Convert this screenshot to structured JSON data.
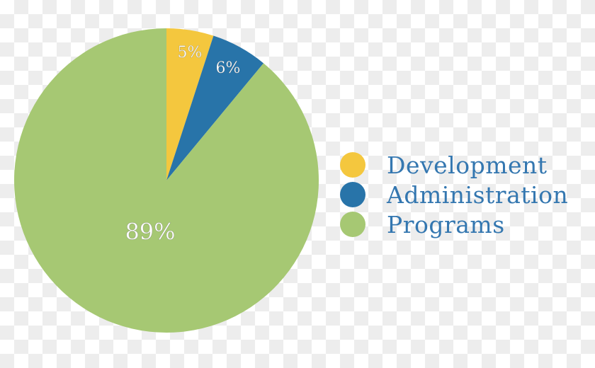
{
  "chart_data": {
    "type": "pie",
    "title": "",
    "start": "top",
    "direction": "clockwise",
    "slices": [
      {
        "label": "Development",
        "value": 5,
        "data_label": "5%",
        "color": "#f4c73e"
      },
      {
        "label": "Administration",
        "value": 6,
        "data_label": "6%",
        "color": "#2874a9"
      },
      {
        "label": "Programs",
        "value": 89,
        "data_label": "89%",
        "color": "#a6c873"
      }
    ],
    "legend_position": "right"
  }
}
